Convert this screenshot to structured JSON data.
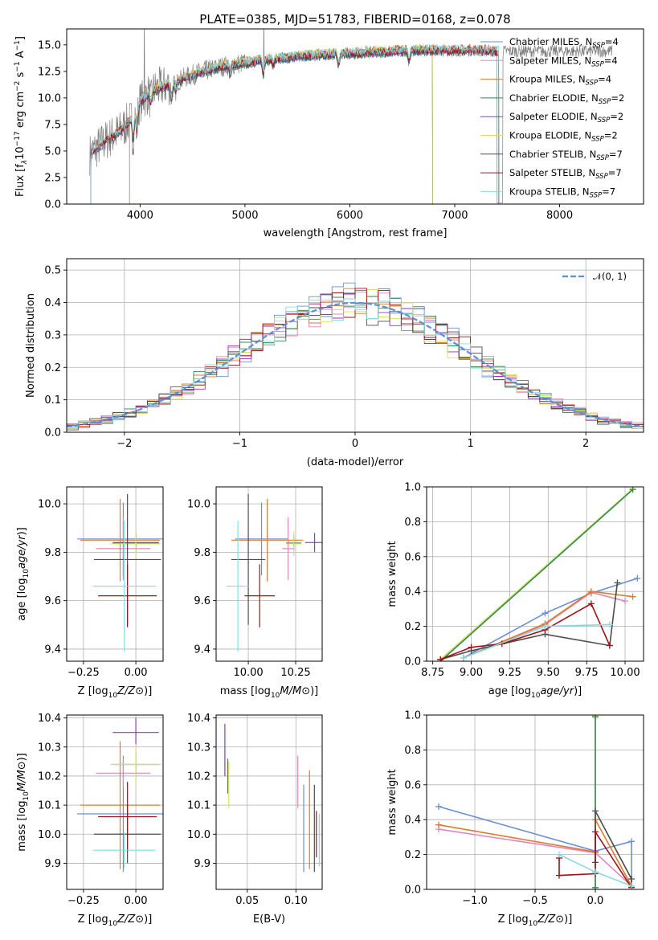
{
  "colors": {
    "Chabrier MILES": "#6a8fd6",
    "Salpeter MILES": "#e185bf",
    "Kroupa MILES": "#e07a2c",
    "Chabrier ELODIE": "#2e8a57",
    "Salpeter ELODIE": "#9b30c6",
    "Kroupa ELODIE": "#d6e25a",
    "Chabrier STELIB": "#4d4d4d",
    "Salpeter STELIB": "#a0121a",
    "Kroupa STELIB": "#86dbe0",
    "normal": "#5b8fd6",
    "spectrum": "#7f7f7f"
  },
  "chart_data": [
    {
      "id": "spectrum",
      "type": "line",
      "title": "PLATE=0385, MJD=51783, FIBERID=0168, z=0.078",
      "xlabel": "wavelength [Angstrom, rest frame]",
      "ylabel_parts": [
        "Flux [f",
        "λ",
        "10",
        "−17",
        " erg cm",
        "−2",
        " s",
        "−1",
        " A",
        "−1",
        "]"
      ],
      "xlim": [
        3300,
        8800
      ],
      "ylim": [
        0,
        16.5
      ],
      "xticks": [
        4000,
        5000,
        6000,
        7000,
        8000
      ],
      "xtick_labels": [
        "4000",
        "5000",
        "6000",
        "7000",
        "8000"
      ],
      "yticks": [
        0,
        2.5,
        5,
        7.5,
        10,
        12.5,
        15
      ],
      "ytick_labels": [
        "0.0",
        "2.5",
        "5.0",
        "7.5",
        "10.0",
        "12.5",
        "15.0"
      ],
      "continuum": {
        "x": [
          3500,
          3600,
          3700,
          3800,
          3900,
          4000,
          4100,
          4200,
          4300,
          4400,
          4600,
          4800,
          5000,
          5200,
          5400,
          5600,
          5800,
          6000,
          6200,
          6400,
          6600,
          6800,
          7000,
          7200,
          7400
        ],
        "y": [
          4.5,
          5.4,
          6.2,
          6.8,
          7.8,
          9.6,
          10.6,
          11.0,
          11.3,
          11.8,
          12.5,
          13.0,
          13.3,
          13.6,
          13.8,
          14.0,
          14.1,
          14.2,
          14.3,
          14.4,
          14.5,
          14.5,
          14.5,
          14.5,
          14.4
        ]
      },
      "legend": [
        {
          "name": "Chabrier MILES",
          "nssp": "4"
        },
        {
          "name": "Salpeter MILES",
          "nssp": "4"
        },
        {
          "name": "Kroupa MILES",
          "nssp": "4"
        },
        {
          "name": "Chabrier ELODIE",
          "nssp": "2"
        },
        {
          "name": "Salpeter ELODIE",
          "nssp": "2"
        },
        {
          "name": "Kroupa ELODIE",
          "nssp": "2"
        },
        {
          "name": "Chabrier STELIB",
          "nssp": "7"
        },
        {
          "name": "Salpeter STELIB",
          "nssp": "7"
        },
        {
          "name": "Kroupa STELIB",
          "nssp": "7"
        }
      ],
      "legend_nssp_prefix": "=",
      "legend_placement": "right"
    },
    {
      "id": "residuals",
      "type": "histogram",
      "xlabel": "(data-model)/error",
      "ylabel": "Normed distribution",
      "xlim": [
        -2.5,
        2.5
      ],
      "ylim": [
        0,
        0.535
      ],
      "xticks": [
        -2,
        -1,
        0,
        1,
        2
      ],
      "xtick_labels": [
        "−2",
        "−1",
        "0",
        "1",
        "2"
      ],
      "yticks": [
        0,
        0.1,
        0.2,
        0.3,
        0.4,
        0.5
      ],
      "ytick_labels": [
        "0.0",
        "0.1",
        "0.2",
        "0.3",
        "0.4",
        "0.5"
      ],
      "bin_width": 0.1,
      "normal_legend": "𝒩(0, 1)",
      "legend_placement": "top-right",
      "grid": true
    },
    {
      "id": "age_vs_Z",
      "type": "errorbar",
      "xlabel": "Z [log10(Z/Z⊙)]",
      "ylabel": "age [log10(age/yr)]",
      "xlim": [
        -0.33,
        0.13
      ],
      "ylim": [
        9.35,
        10.07
      ],
      "xticks": [
        -0.25,
        0.0
      ],
      "xtick_labels": [
        "−0.25",
        "0.00"
      ],
      "yticks": [
        9.4,
        9.6,
        9.8,
        10.0
      ],
      "ytick_labels": [
        "9.4",
        "9.6",
        "9.8",
        "10.0"
      ],
      "points": [
        {
          "s": "Chabrier MILES",
          "x": -0.06,
          "xe": 0.22,
          "y": 9.855,
          "ye": 0.15
        },
        {
          "s": "Salpeter MILES",
          "x": -0.06,
          "xe": 0.13,
          "y": 9.815,
          "ye": 0.13
        },
        {
          "s": "Kroupa MILES",
          "x": -0.075,
          "xe": 0.19,
          "y": 9.85,
          "ye": 0.17
        },
        {
          "s": "Chabrier ELODIE",
          "x": 0.0,
          "xe": 0.11,
          "y": 9.838,
          "ye": 0.03
        },
        {
          "s": "Salpeter ELODIE",
          "x": 0.0,
          "xe": 0.11,
          "y": 9.84,
          "ye": 0.04
        },
        {
          "s": "Kroupa ELODIE",
          "x": 0.0,
          "xe": 0.12,
          "y": 9.835,
          "ye": 0.05
        },
        {
          "s": "Chabrier STELIB",
          "x": -0.04,
          "xe": 0.16,
          "y": 9.77,
          "ye": 0.27
        },
        {
          "s": "Salpeter STELIB",
          "x": -0.04,
          "xe": 0.14,
          "y": 9.62,
          "ye": 0.13
        },
        {
          "s": "Kroupa STELIB",
          "x": -0.055,
          "xe": 0.15,
          "y": 9.66,
          "ye": 0.27
        }
      ]
    },
    {
      "id": "age_vs_mass",
      "type": "errorbar",
      "xlabel": "mass [log10(M/M⊙)]",
      "ylabel": "",
      "xlim": [
        9.83,
        10.39
      ],
      "ylim": [
        9.35,
        10.07
      ],
      "xticks": [
        10.0,
        10.25
      ],
      "xtick_labels": [
        "10.00",
        "10.25"
      ],
      "yticks": [
        9.4,
        9.6,
        9.8,
        10.0
      ],
      "ytick_labels": [
        "9.4",
        "9.6",
        "9.8",
        "10.0"
      ],
      "points": [
        {
          "s": "Chabrier MILES",
          "x": 10.07,
          "xe": 0.14,
          "y": 9.855,
          "ye": 0.15
        },
        {
          "s": "Salpeter MILES",
          "x": 10.21,
          "xe": 0.03,
          "y": 9.815,
          "ye": 0.13
        },
        {
          "s": "Kroupa MILES",
          "x": 10.1,
          "xe": 0.19,
          "y": 9.85,
          "ye": 0.17
        },
        {
          "s": "Chabrier ELODIE",
          "x": 10.24,
          "xe": 0.04,
          "y": 9.838,
          "ye": 0.03
        },
        {
          "s": "Salpeter ELODIE",
          "x": 10.35,
          "xe": 0.05,
          "y": 9.84,
          "ye": 0.04
        },
        {
          "s": "Kroupa ELODIE",
          "x": 10.24,
          "xe": 0.04,
          "y": 9.835,
          "ye": 0.05
        },
        {
          "s": "Chabrier STELIB",
          "x": 10.0,
          "xe": 0.09,
          "y": 9.77,
          "ye": 0.27
        },
        {
          "s": "Salpeter STELIB",
          "x": 10.06,
          "xe": 0.08,
          "y": 9.62,
          "ye": 0.13
        },
        {
          "s": "Kroupa STELIB",
          "x": 9.945,
          "xe": 0.06,
          "y": 9.66,
          "ye": 0.27
        }
      ]
    },
    {
      "id": "weight_vs_age",
      "type": "line",
      "xlabel": "age [log10(age/yr)]",
      "ylabel": "mass weight",
      "xlim": [
        8.71,
        10.12
      ],
      "ylim": [
        0,
        1.0
      ],
      "xticks": [
        8.75,
        9.0,
        9.25,
        9.5,
        9.75,
        10.0
      ],
      "xtick_labels": [
        "8.75",
        "9.00",
        "9.25",
        "9.50",
        "9.75",
        "10.00"
      ],
      "yticks": [
        0,
        0.2,
        0.4,
        0.6,
        0.8,
        1.0
      ],
      "ytick_labels": [
        "0.0",
        "0.2",
        "0.4",
        "0.6",
        "0.8",
        "1.0"
      ],
      "series": [
        {
          "s": "Kroupa ELODIE",
          "x": [
            8.8,
            10.05
          ],
          "y": [
            0.01,
            0.99
          ]
        },
        {
          "s": "Chabrier ELODIE",
          "x": [
            8.8,
            10.05
          ],
          "y": [
            0.0,
            0.985
          ]
        },
        {
          "s": "Chabrier MILES",
          "x": [
            8.95,
            9.48,
            9.78,
            10.08
          ],
          "y": [
            0.02,
            0.275,
            0.39,
            0.475
          ]
        },
        {
          "s": "Salpeter MILES",
          "x": [
            8.95,
            9.48,
            9.78,
            10.0
          ],
          "y": [
            0.02,
            0.21,
            0.395,
            0.345
          ]
        },
        {
          "s": "Kroupa MILES",
          "x": [
            8.95,
            9.48,
            9.78,
            10.05
          ],
          "y": [
            0.02,
            0.215,
            0.4,
            0.37
          ]
        },
        {
          "s": "Chabrier STELIB",
          "x": [
            8.8,
            9.0,
            9.48,
            9.9,
            9.95
          ],
          "y": [
            0.01,
            0.06,
            0.155,
            0.09,
            0.45
          ]
        },
        {
          "s": "Salpeter STELIB",
          "x": [
            8.8,
            9.0,
            9.2,
            9.48,
            9.78,
            9.9
          ],
          "y": [
            0.01,
            0.08,
            0.1,
            0.18,
            0.33,
            0.09
          ]
        },
        {
          "s": "Kroupa STELIB",
          "x": [
            8.95,
            9.48,
            9.9
          ],
          "y": [
            0.02,
            0.2,
            0.21
          ]
        }
      ]
    },
    {
      "id": "mass_vs_Z",
      "type": "errorbar",
      "xlabel": "Z [log10(Z/Z⊙)]",
      "ylabel": "mass [log10(M/M⊙)]",
      "xlim": [
        -0.33,
        0.13
      ],
      "ylim": [
        9.81,
        10.41
      ],
      "xticks": [
        -0.25,
        0.0
      ],
      "xtick_labels": [
        "−0.25",
        "0.00"
      ],
      "yticks": [
        9.9,
        10.0,
        10.1,
        10.2,
        10.3,
        10.4
      ],
      "ytick_labels": [
        "9.9",
        "10.0",
        "10.1",
        "10.2",
        "10.3",
        "10.4"
      ],
      "points": [
        {
          "s": "Chabrier MILES",
          "x": -0.06,
          "xe": 0.22,
          "y": 10.07,
          "ye": 0.2
        },
        {
          "s": "Salpeter MILES",
          "x": -0.06,
          "xe": 0.13,
          "y": 10.21,
          "ye": 0.05
        },
        {
          "s": "Kroupa MILES",
          "x": -0.075,
          "xe": 0.19,
          "y": 10.1,
          "ye": 0.22
        },
        {
          "s": "Chabrier ELODIE",
          "x": 0.0,
          "xe": 0.11,
          "y": 10.24,
          "ye": 0.04
        },
        {
          "s": "Salpeter ELODIE",
          "x": 0.0,
          "xe": 0.11,
          "y": 10.35,
          "ye": 0.05
        },
        {
          "s": "Kroupa ELODIE",
          "x": 0.0,
          "xe": 0.12,
          "y": 10.24,
          "ye": 0.07
        },
        {
          "s": "Chabrier STELIB",
          "x": -0.04,
          "xe": 0.16,
          "y": 10.0,
          "ye": 0.1
        },
        {
          "s": "Salpeter STELIB",
          "x": -0.04,
          "xe": 0.14,
          "y": 10.06,
          "ye": 0.12
        },
        {
          "s": "Kroupa STELIB",
          "x": -0.055,
          "xe": 0.15,
          "y": 9.945,
          "ye": 0.06
        }
      ]
    },
    {
      "id": "mass_vs_ebv",
      "type": "errorbar",
      "xlabel": "E(B-V)",
      "ylabel": "",
      "xlim": [
        0.018,
        0.127
      ],
      "ylim": [
        9.81,
        10.41
      ],
      "xticks": [
        0.05,
        0.1
      ],
      "xtick_labels": [
        "0.05",
        "0.10"
      ],
      "yticks": [
        9.9,
        10.0,
        10.1,
        10.2,
        10.3,
        10.4
      ],
      "ytick_labels": [
        "9.9",
        "10.0",
        "10.1",
        "10.2",
        "10.3",
        "10.4"
      ],
      "points": [
        {
          "s": "Chabrier MILES",
          "x": 0.108,
          "xe": 0.0,
          "y": 10.02,
          "ye": 0.15
        },
        {
          "s": "Salpeter MILES",
          "x": 0.102,
          "xe": 0.0,
          "y": 10.18,
          "ye": 0.09
        },
        {
          "s": "Kroupa MILES",
          "x": 0.114,
          "xe": 0.0,
          "y": 10.05,
          "ye": 0.17
        },
        {
          "s": "Chabrier ELODIE",
          "x": 0.03,
          "xe": 0.0,
          "y": 10.2,
          "ye": 0.06
        },
        {
          "s": "Salpeter ELODIE",
          "x": 0.027,
          "xe": 0.0,
          "y": 10.29,
          "ye": 0.09
        },
        {
          "s": "Kroupa ELODIE",
          "x": 0.031,
          "xe": 0.0,
          "y": 10.17,
          "ye": 0.08
        },
        {
          "s": "Chabrier STELIB",
          "x": 0.119,
          "xe": 0.0,
          "y": 10.02,
          "ye": 0.15
        },
        {
          "s": "Salpeter STELIB",
          "x": 0.121,
          "xe": 0.0,
          "y": 10.0,
          "ye": 0.08
        },
        {
          "s": "Kroupa STELIB",
          "x": 0.124,
          "xe": 0.0,
          "y": 9.98,
          "ye": 0.09
        }
      ]
    },
    {
      "id": "weight_vs_Z",
      "type": "line",
      "xlabel": "Z [log10(Z/Z⊙)]",
      "ylabel": "mass weight",
      "xlim": [
        -1.4,
        0.4
      ],
      "ylim": [
        0,
        1.0
      ],
      "xticks": [
        -1.0,
        -0.5,
        0.0
      ],
      "xtick_labels": [
        "−1.0",
        "−0.5",
        "0.0"
      ],
      "yticks": [
        0,
        0.2,
        0.4,
        0.6,
        0.8,
        1.0
      ],
      "ytick_labels": [
        "0.0",
        "0.2",
        "0.4",
        "0.6",
        "0.8",
        "1.0"
      ],
      "series": [
        {
          "s": "Kroupa ELODIE",
          "x": [
            0.0,
            0.0
          ],
          "y": [
            0.0,
            0.995
          ]
        },
        {
          "s": "Chabrier ELODIE",
          "x": [
            0.0,
            0.0
          ],
          "y": [
            0.01,
            0.99
          ]
        },
        {
          "s": "Chabrier MILES",
          "x": [
            -1.3,
            0.0,
            0.3,
            0.3
          ],
          "y": [
            0.475,
            0.22,
            0.275,
            0.02
          ]
        },
        {
          "s": "Salpeter MILES",
          "x": [
            -1.3,
            0.0,
            0.3
          ],
          "y": [
            0.345,
            0.21,
            0.02
          ]
        },
        {
          "s": "Kroupa MILES",
          "x": [
            -1.3,
            0.0,
            0.0,
            0.3
          ],
          "y": [
            0.37,
            0.215,
            0.4,
            0.02
          ]
        },
        {
          "s": "Chabrier STELIB",
          "x": [
            0.0,
            0.0,
            0.3,
            0.3
          ],
          "y": [
            0.155,
            0.45,
            0.06,
            0.01
          ]
        },
        {
          "s": "Salpeter STELIB",
          "x": [
            -0.3,
            -0.3,
            0.0,
            0.0,
            0.3
          ],
          "y": [
            0.18,
            0.08,
            0.09,
            0.33,
            0.01
          ]
        },
        {
          "s": "Kroupa STELIB",
          "x": [
            -0.3,
            0.0,
            0.3
          ],
          "y": [
            0.2,
            0.1,
            0.02
          ]
        }
      ]
    }
  ]
}
